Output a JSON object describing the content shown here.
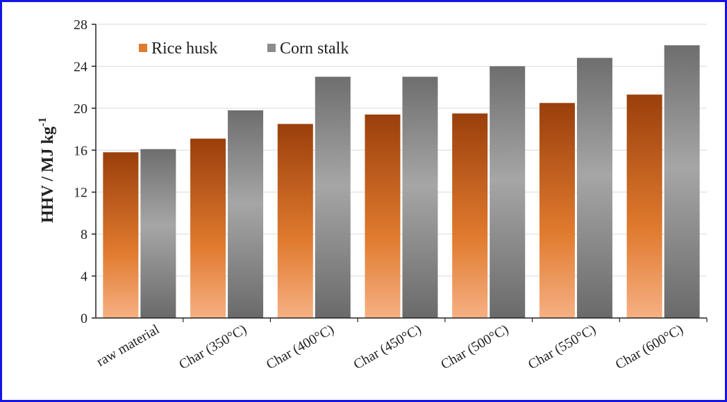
{
  "chart_data": {
    "type": "bar",
    "title": "",
    "xlabel": "",
    "ylabel": "HHV / MJ kg",
    "ylabel_superscript": "-1",
    "ylim": [
      0,
      28
    ],
    "yticks": [
      0,
      4,
      8,
      12,
      16,
      20,
      24,
      28
    ],
    "grid": true,
    "legend_position": "top-left",
    "categories": [
      "raw material",
      "Char (350°C)",
      "Char (400°C)",
      "Char (450°C)",
      "Char (500°C)",
      "Char (550°C)",
      "Char (600°C)"
    ],
    "series": [
      {
        "name": "Rice husk",
        "color": "#e07a2e",
        "values": [
          15.8,
          17.1,
          18.5,
          19.4,
          19.5,
          20.5,
          21.3
        ]
      },
      {
        "name": "Corn stalk",
        "color": "#8c8c8c",
        "values": [
          16.1,
          19.8,
          23.0,
          23.0,
          24.0,
          24.8,
          26.0
        ]
      }
    ]
  }
}
